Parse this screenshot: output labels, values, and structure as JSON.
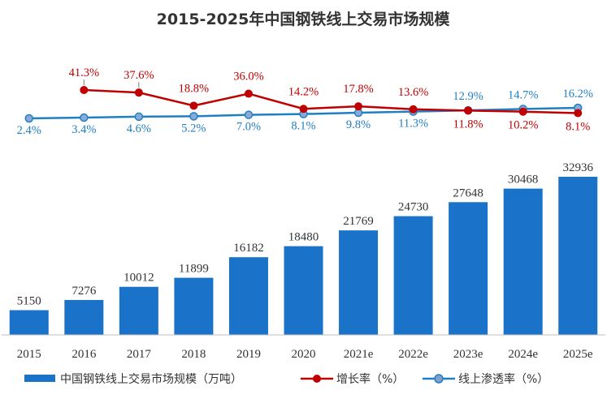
{
  "chart_data": {
    "type": "bar",
    "title": "2015-2025年中国钢铁线上交易市场规模",
    "categories": [
      "2015",
      "2016",
      "2017",
      "2018",
      "2019",
      "2020",
      "2021e",
      "2022e",
      "2023e",
      "2024e",
      "2025e"
    ],
    "series": [
      {
        "name": "中国钢铁线上交易市场规模（万吨）",
        "type": "bar",
        "color": "#1a73c8",
        "values": [
          5150,
          7276,
          10012,
          11899,
          16182,
          18480,
          21769,
          24730,
          27648,
          30468,
          32936
        ]
      },
      {
        "name": "增长率（%）",
        "type": "line",
        "color": "#c00000",
        "values": [
          null,
          41.3,
          37.6,
          18.8,
          36.0,
          14.2,
          17.8,
          13.6,
          11.8,
          10.2,
          8.1
        ],
        "labels": [
          "",
          "41.3%",
          "37.6%",
          "18.8%",
          "36.0%",
          "14.2%",
          "17.8%",
          "13.6%",
          "11.8%",
          "10.2%",
          "8.1%"
        ]
      },
      {
        "name": "线上渗透率（%）",
        "type": "line",
        "color": "#1f7fc4",
        "values": [
          2.4,
          3.4,
          4.6,
          5.2,
          7.0,
          8.1,
          9.8,
          11.3,
          12.9,
          14.7,
          16.2
        ],
        "labels": [
          "2.4%",
          "3.4%",
          "4.6%",
          "5.2%",
          "7.0%",
          "8.1%",
          "9.8%",
          "11.3%",
          "12.9%",
          "14.7%",
          "16.2%"
        ]
      }
    ],
    "xlabel": "",
    "ylabel": "",
    "ylim": [
      0,
      34000
    ],
    "grid": false,
    "legend": "bottom"
  }
}
